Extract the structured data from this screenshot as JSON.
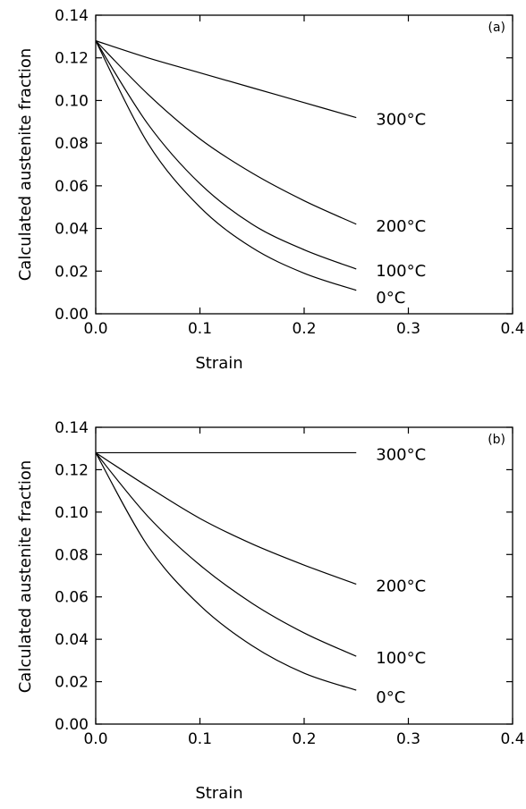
{
  "chart_data": [
    {
      "type": "line",
      "panel_label": "(a)",
      "xlabel": "Strain",
      "ylabel": "Calculated austenite fraction",
      "xlim": [
        0,
        0.4
      ],
      "ylim": [
        0,
        0.14
      ],
      "xticks": [
        "0.0",
        "0.1",
        "0.2",
        "0.3",
        "0.4"
      ],
      "yticks": [
        "0.00",
        "0.02",
        "0.04",
        "0.06",
        "0.08",
        "0.10",
        "0.12",
        "0.14"
      ],
      "grid": false,
      "series": [
        {
          "name": "300°C",
          "x": [
            0,
            0.05,
            0.1,
            0.15,
            0.2,
            0.25
          ],
          "y": [
            0.128,
            0.12,
            0.113,
            0.106,
            0.099,
            0.092
          ]
        },
        {
          "name": "200°C",
          "x": [
            0,
            0.05,
            0.1,
            0.15,
            0.2,
            0.25
          ],
          "y": [
            0.128,
            0.103,
            0.082,
            0.066,
            0.053,
            0.042
          ]
        },
        {
          "name": "100°C",
          "x": [
            0,
            0.05,
            0.1,
            0.15,
            0.2,
            0.25
          ],
          "y": [
            0.128,
            0.089,
            0.061,
            0.042,
            0.03,
            0.021
          ]
        },
        {
          "name": "0°C",
          "x": [
            0,
            0.05,
            0.1,
            0.15,
            0.2,
            0.25
          ],
          "y": [
            0.128,
            0.08,
            0.05,
            0.031,
            0.019,
            0.011
          ]
        }
      ]
    },
    {
      "type": "line",
      "panel_label": "(b)",
      "xlabel": "Strain",
      "ylabel": "Calculated austenite fraction",
      "xlim": [
        0,
        0.4
      ],
      "ylim": [
        0,
        0.14
      ],
      "xticks": [
        "0.0",
        "0.1",
        "0.2",
        "0.3",
        "0.4"
      ],
      "yticks": [
        "0.00",
        "0.02",
        "0.04",
        "0.06",
        "0.08",
        "0.10",
        "0.12",
        "0.14"
      ],
      "grid": false,
      "series": [
        {
          "name": "300°C",
          "x": [
            0,
            0.05,
            0.1,
            0.15,
            0.2,
            0.25
          ],
          "y": [
            0.128,
            0.128,
            0.128,
            0.128,
            0.128,
            0.128
          ]
        },
        {
          "name": "200°C",
          "x": [
            0,
            0.05,
            0.1,
            0.15,
            0.2,
            0.25
          ],
          "y": [
            0.128,
            0.112,
            0.097,
            0.085,
            0.075,
            0.066
          ]
        },
        {
          "name": "100°C",
          "x": [
            0,
            0.05,
            0.1,
            0.15,
            0.2,
            0.25
          ],
          "y": [
            0.128,
            0.098,
            0.075,
            0.057,
            0.043,
            0.032
          ]
        },
        {
          "name": "0°C",
          "x": [
            0,
            0.05,
            0.1,
            0.15,
            0.2,
            0.25
          ],
          "y": [
            0.128,
            0.084,
            0.056,
            0.037,
            0.024,
            0.016
          ]
        }
      ]
    }
  ]
}
